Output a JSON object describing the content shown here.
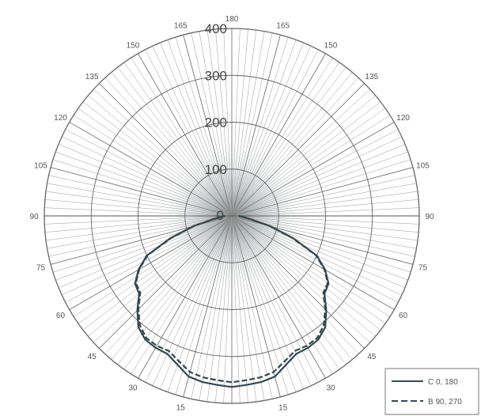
{
  "chart_data": {
    "type": "polar-line",
    "title": "",
    "radial_axis": {
      "min": 0,
      "max": 400,
      "ticks": [
        0,
        100,
        200,
        300,
        400
      ],
      "tick_labels": [
        "0",
        "100",
        "200",
        "300",
        "400"
      ]
    },
    "angular_tick_labels": [
      "180",
      "165",
      "150",
      "135",
      "120",
      "105",
      "90",
      "75",
      "60",
      "45",
      "30",
      "15",
      "15",
      "30",
      "45",
      "60",
      "75",
      "90",
      "105",
      "120",
      "135",
      "150",
      "165"
    ],
    "grid": true,
    "legend_placement": "bottom-right",
    "series": [
      {
        "name": "C 0, 180",
        "style": "solid",
        "angles_deg": [
          0,
          5,
          10,
          15,
          20,
          25,
          30,
          35,
          40,
          45,
          50,
          55,
          60,
          65,
          70,
          75,
          80,
          85,
          90
        ],
        "values": [
          365,
          362,
          360,
          355,
          338,
          325,
          325,
          322,
          310,
          285,
          258,
          252,
          230,
          200,
          140,
          85,
          40,
          22,
          15
        ]
      },
      {
        "name": "B 90, 270",
        "style": "dashed",
        "angles_deg": [
          0,
          5,
          10,
          15,
          20,
          25,
          30,
          35,
          40,
          45,
          50,
          55,
          60,
          65,
          70,
          75,
          80,
          85,
          90
        ],
        "values": [
          355,
          352,
          350,
          345,
          330,
          318,
          320,
          318,
          305,
          282,
          255,
          250,
          228,
          198,
          138,
          84,
          40,
          22,
          15
        ]
      }
    ]
  }
}
